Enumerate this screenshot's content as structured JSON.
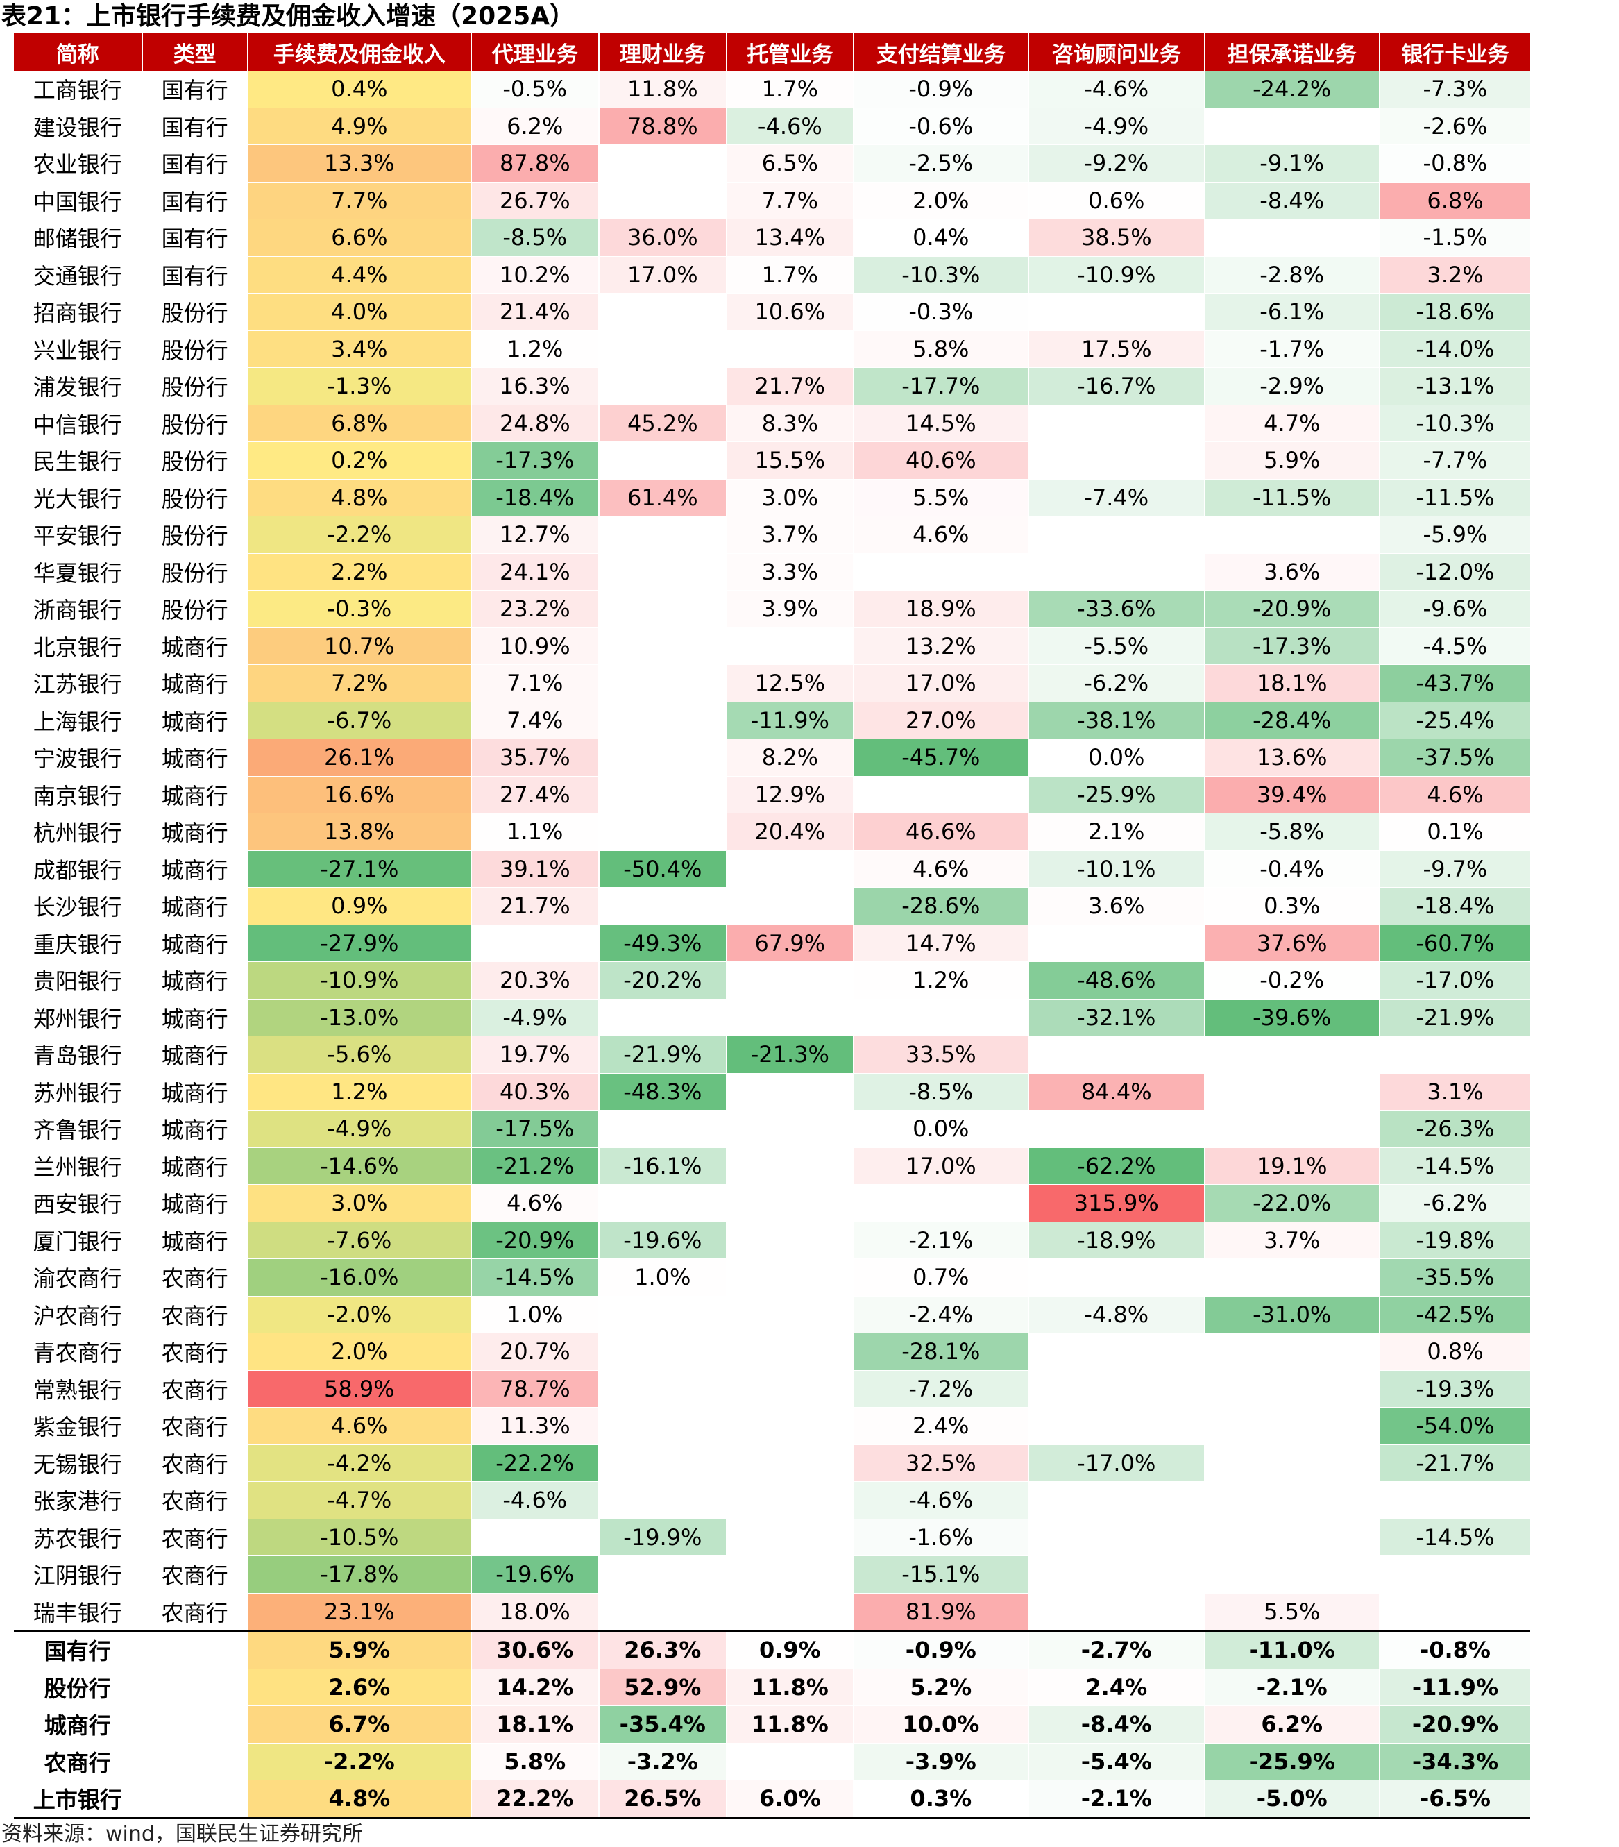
{
  "title": "表21：上市银行手续费及佣金收入增速（2025A）",
  "source": "资料来源：wind，国联民生证券研究所",
  "columns": [
    "简称",
    "类型",
    "手续费及佣金收入",
    "代理业务",
    "理财业务",
    "托管业务",
    "支付结算业务",
    "咨询顾问业务",
    "担保承诺业务",
    "银行卡业务"
  ],
  "rows": [
    {
      "name": "工商银行",
      "type": "国有行",
      "values": [
        "0.4%",
        "-0.5%",
        "11.8%",
        "1.7%",
        "-0.9%",
        "-4.6%",
        "-24.2%",
        "-7.3%"
      ]
    },
    {
      "name": "建设银行",
      "type": "国有行",
      "values": [
        "4.9%",
        "6.2%",
        "78.8%",
        "-4.6%",
        "-0.6%",
        "-4.9%",
        "",
        "-2.6%"
      ]
    },
    {
      "name": "农业银行",
      "type": "国有行",
      "values": [
        "13.3%",
        "87.8%",
        "",
        "6.5%",
        "-2.5%",
        "-9.2%",
        "-9.1%",
        "-0.8%"
      ]
    },
    {
      "name": "中国银行",
      "type": "国有行",
      "values": [
        "7.7%",
        "26.7%",
        "",
        "7.7%",
        "2.0%",
        "0.6%",
        "-8.4%",
        "6.8%"
      ]
    },
    {
      "name": "邮储银行",
      "type": "国有行",
      "values": [
        "6.6%",
        "-8.5%",
        "36.0%",
        "13.4%",
        "0.4%",
        "38.5%",
        "",
        "-1.5%"
      ]
    },
    {
      "name": "交通银行",
      "type": "国有行",
      "values": [
        "4.4%",
        "10.2%",
        "17.0%",
        "1.7%",
        "-10.3%",
        "-10.9%",
        "-2.8%",
        "3.2%"
      ]
    },
    {
      "name": "招商银行",
      "type": "股份行",
      "values": [
        "4.0%",
        "21.4%",
        "",
        "10.6%",
        "-0.3%",
        "",
        "-6.1%",
        "-18.6%"
      ]
    },
    {
      "name": "兴业银行",
      "type": "股份行",
      "values": [
        "3.4%",
        "1.2%",
        "",
        "",
        "5.8%",
        "17.5%",
        "-1.7%",
        "-14.0%"
      ]
    },
    {
      "name": "浦发银行",
      "type": "股份行",
      "values": [
        "-1.3%",
        "16.3%",
        "",
        "21.7%",
        "-17.7%",
        "-16.7%",
        "-2.9%",
        "-13.1%"
      ]
    },
    {
      "name": "中信银行",
      "type": "股份行",
      "values": [
        "6.8%",
        "24.8%",
        "45.2%",
        "8.3%",
        "14.5%",
        "",
        "4.7%",
        "-10.3%"
      ]
    },
    {
      "name": "民生银行",
      "type": "股份行",
      "values": [
        "0.2%",
        "-17.3%",
        "",
        "15.5%",
        "40.6%",
        "",
        "5.9%",
        "-7.7%"
      ]
    },
    {
      "name": "光大银行",
      "type": "股份行",
      "values": [
        "4.8%",
        "-18.4%",
        "61.4%",
        "3.0%",
        "5.5%",
        "-7.4%",
        "-11.5%",
        "-11.5%"
      ]
    },
    {
      "name": "平安银行",
      "type": "股份行",
      "values": [
        "-2.2%",
        "12.7%",
        "",
        "3.7%",
        "4.6%",
        "",
        "",
        "-5.9%"
      ]
    },
    {
      "name": "华夏银行",
      "type": "股份行",
      "values": [
        "2.2%",
        "24.1%",
        "",
        "3.3%",
        "",
        "",
        "3.6%",
        "-12.0%"
      ]
    },
    {
      "name": "浙商银行",
      "type": "股份行",
      "values": [
        "-0.3%",
        "23.2%",
        "",
        "3.9%",
        "18.9%",
        "-33.6%",
        "-20.9%",
        "-9.6%"
      ]
    },
    {
      "name": "北京银行",
      "type": "城商行",
      "values": [
        "10.7%",
        "10.9%",
        "",
        "",
        "13.2%",
        "-5.5%",
        "-17.3%",
        "-4.5%"
      ]
    },
    {
      "name": "江苏银行",
      "type": "城商行",
      "values": [
        "7.2%",
        "7.1%",
        "",
        "12.5%",
        "17.0%",
        "-6.2%",
        "18.1%",
        "-43.7%"
      ]
    },
    {
      "name": "上海银行",
      "type": "城商行",
      "values": [
        "-6.7%",
        "7.4%",
        "",
        "-11.9%",
        "27.0%",
        "-38.1%",
        "-28.4%",
        "-25.4%"
      ]
    },
    {
      "name": "宁波银行",
      "type": "城商行",
      "values": [
        "26.1%",
        "35.7%",
        "",
        "8.2%",
        "-45.7%",
        "0.0%",
        "13.6%",
        "-37.5%"
      ]
    },
    {
      "name": "南京银行",
      "type": "城商行",
      "values": [
        "16.6%",
        "27.4%",
        "",
        "12.9%",
        "",
        "-25.9%",
        "39.4%",
        "4.6%"
      ]
    },
    {
      "name": "杭州银行",
      "type": "城商行",
      "values": [
        "13.8%",
        "1.1%",
        "",
        "20.4%",
        "46.6%",
        "2.1%",
        "-5.8%",
        "0.1%"
      ]
    },
    {
      "name": "成都银行",
      "type": "城商行",
      "values": [
        "-27.1%",
        "39.1%",
        "-50.4%",
        "",
        "4.6%",
        "-10.1%",
        "-0.4%",
        "-9.7%"
      ]
    },
    {
      "name": "长沙银行",
      "type": "城商行",
      "values": [
        "0.9%",
        "21.7%",
        "",
        "",
        "-28.6%",
        "3.6%",
        "0.3%",
        "-18.4%"
      ]
    },
    {
      "name": "重庆银行",
      "type": "城商行",
      "values": [
        "-27.9%",
        "",
        "-49.3%",
        "67.9%",
        "14.7%",
        "",
        "37.6%",
        "-60.7%"
      ]
    },
    {
      "name": "贵阳银行",
      "type": "城商行",
      "values": [
        "-10.9%",
        "20.3%",
        "-20.2%",
        "",
        "1.2%",
        "-48.6%",
        "-0.2%",
        "-17.0%"
      ]
    },
    {
      "name": "郑州银行",
      "type": "城商行",
      "values": [
        "-13.0%",
        "-4.9%",
        "",
        "",
        "",
        "-32.1%",
        "-39.6%",
        "-21.9%"
      ]
    },
    {
      "name": "青岛银行",
      "type": "城商行",
      "values": [
        "-5.6%",
        "19.7%",
        "-21.9%",
        "-21.3%",
        "33.5%",
        "",
        "",
        ""
      ]
    },
    {
      "name": "苏州银行",
      "type": "城商行",
      "values": [
        "1.2%",
        "40.3%",
        "-48.3%",
        "",
        "-8.5%",
        "84.4%",
        "",
        "3.1%"
      ]
    },
    {
      "name": "齐鲁银行",
      "type": "城商行",
      "values": [
        "-4.9%",
        "-17.5%",
        "",
        "",
        "0.0%",
        "",
        "",
        "-26.3%"
      ]
    },
    {
      "name": "兰州银行",
      "type": "城商行",
      "values": [
        "-14.6%",
        "-21.2%",
        "-16.1%",
        "",
        "17.0%",
        "-62.2%",
        "19.1%",
        "-14.5%"
      ]
    },
    {
      "name": "西安银行",
      "type": "城商行",
      "values": [
        "3.0%",
        "4.6%",
        "",
        "",
        "",
        "315.9%",
        "-22.0%",
        "-6.2%"
      ]
    },
    {
      "name": "厦门银行",
      "type": "城商行",
      "values": [
        "-7.6%",
        "-20.9%",
        "-19.6%",
        "",
        "-2.1%",
        "-18.9%",
        "3.7%",
        "-19.8%"
      ]
    },
    {
      "name": "渝农商行",
      "type": "农商行",
      "values": [
        "-16.0%",
        "-14.5%",
        "1.0%",
        "",
        "0.7%",
        "",
        "",
        "-35.5%"
      ]
    },
    {
      "name": "沪农商行",
      "type": "农商行",
      "values": [
        "-2.0%",
        "1.0%",
        "",
        "",
        "-2.4%",
        "-4.8%",
        "-31.0%",
        "-42.5%"
      ]
    },
    {
      "name": "青农商行",
      "type": "农商行",
      "values": [
        "2.0%",
        "20.7%",
        "",
        "",
        "-28.1%",
        "",
        "",
        "0.8%"
      ]
    },
    {
      "name": "常熟银行",
      "type": "农商行",
      "values": [
        "58.9%",
        "78.7%",
        "",
        "",
        "-7.2%",
        "",
        "",
        "-19.3%"
      ]
    },
    {
      "name": "紫金银行",
      "type": "农商行",
      "values": [
        "4.6%",
        "11.3%",
        "",
        "",
        "2.4%",
        "",
        "",
        "-54.0%"
      ]
    },
    {
      "name": "无锡银行",
      "type": "农商行",
      "values": [
        "-4.2%",
        "-22.2%",
        "",
        "",
        "32.5%",
        "-17.0%",
        "",
        "-21.7%"
      ]
    },
    {
      "name": "张家港行",
      "type": "农商行",
      "values": [
        "-4.7%",
        "-4.6%",
        "",
        "",
        "-4.6%",
        "",
        "",
        ""
      ]
    },
    {
      "name": "苏农银行",
      "type": "农商行",
      "values": [
        "-10.5%",
        "",
        "-19.9%",
        "",
        "-1.6%",
        "",
        "",
        "-14.5%"
      ]
    },
    {
      "name": "江阴银行",
      "type": "农商行",
      "values": [
        "-17.8%",
        "-19.6%",
        "",
        "",
        "-15.1%",
        "",
        "",
        ""
      ]
    },
    {
      "name": "瑞丰银行",
      "type": "农商行",
      "values": [
        "23.1%",
        "18.0%",
        "",
        "",
        "81.9%",
        "",
        "5.5%",
        ""
      ]
    }
  ],
  "aggregates": [
    {
      "name": "国有行",
      "type": "",
      "values": [
        "5.9%",
        "30.6%",
        "26.3%",
        "0.9%",
        "-0.9%",
        "-2.7%",
        "-11.0%",
        "-0.8%"
      ]
    },
    {
      "name": "股份行",
      "type": "",
      "values": [
        "2.6%",
        "14.2%",
        "52.9%",
        "11.8%",
        "5.2%",
        "2.4%",
        "-2.1%",
        "-11.9%"
      ]
    },
    {
      "name": "城商行",
      "type": "",
      "values": [
        "6.7%",
        "18.1%",
        "-35.4%",
        "11.8%",
        "10.0%",
        "-8.4%",
        "6.2%",
        "-20.9%"
      ]
    },
    {
      "name": "农商行",
      "type": "",
      "values": [
        "-2.2%",
        "5.8%",
        "-3.2%",
        "",
        "-3.9%",
        "-5.4%",
        "-25.9%",
        "-34.3%"
      ]
    },
    {
      "name": "上市银行",
      "type": "",
      "values": [
        "4.8%",
        "22.2%",
        "26.5%",
        "6.0%",
        "0.3%",
        "-2.1%",
        "-5.0%",
        "-6.5%"
      ]
    }
  ],
  "colors": {
    "header_bg": "#c00000",
    "header_text": "#ffffff",
    "scale_low_green": "#63be7b",
    "scale_mid_yellow": "#ffeb84",
    "scale_high_red": "#f8696b",
    "scale_neutral_white": "#ffffff",
    "scale_high_pink": "#f8696b"
  }
}
